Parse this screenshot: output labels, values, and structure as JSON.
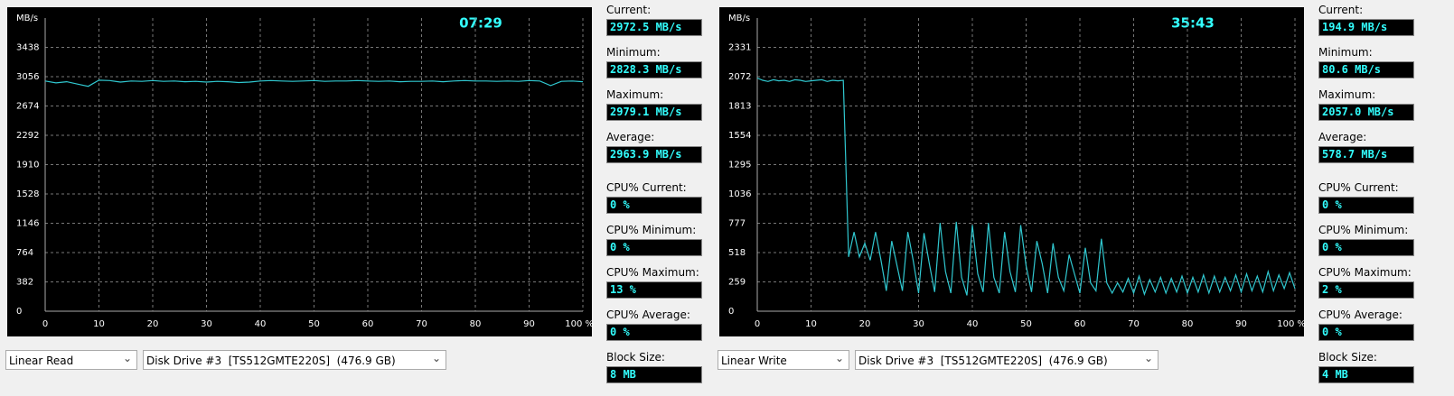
{
  "chart_data": [
    {
      "type": "line",
      "y_label": "MB/s",
      "annotation": "07:29",
      "xlim": [
        0,
        100
      ],
      "xticks": [
        0,
        10,
        20,
        30,
        40,
        50,
        60,
        70,
        80,
        90,
        {
          "value": 100,
          "label": "100 %"
        }
      ],
      "ylim": [
        0,
        3820
      ],
      "yticks": [
        0,
        382,
        764,
        1146,
        1528,
        1910,
        2292,
        2674,
        3056,
        3438
      ],
      "grid": true,
      "x": [
        0,
        2,
        4,
        6,
        8,
        10,
        12,
        14,
        16,
        18,
        20,
        22,
        24,
        26,
        28,
        30,
        32,
        34,
        36,
        38,
        40,
        42,
        44,
        46,
        48,
        50,
        52,
        54,
        56,
        58,
        60,
        62,
        64,
        66,
        68,
        70,
        72,
        74,
        76,
        78,
        80,
        82,
        84,
        86,
        88,
        90,
        92,
        94,
        96,
        98,
        100
      ],
      "series": [
        {
          "color": "#30c8d0",
          "values": [
            3000,
            2975,
            2990,
            2960,
            2930,
            3010,
            3005,
            2985,
            3000,
            2995,
            3005,
            2995,
            3000,
            2990,
            2995,
            2985,
            2995,
            2990,
            2980,
            2985,
            3000,
            3005,
            3000,
            2995,
            3000,
            3005,
            2995,
            3000,
            3000,
            3005,
            3000,
            2995,
            3000,
            2990,
            2995,
            2995,
            3000,
            2990,
            3000,
            3005,
            3000,
            3000,
            2995,
            3000,
            2995,
            3005,
            3000,
            2940,
            2995,
            3000,
            2990
          ]
        }
      ]
    },
    {
      "type": "line",
      "y_label": "MB/s",
      "annotation": "35:43",
      "xlim": [
        0,
        100
      ],
      "xticks": [
        0,
        10,
        20,
        30,
        40,
        50,
        60,
        70,
        80,
        90,
        {
          "value": 100,
          "label": "100 %"
        }
      ],
      "ylim": [
        0,
        2590
      ],
      "yticks": [
        0,
        259,
        518,
        777,
        1036,
        1295,
        1554,
        1813,
        2072,
        2331
      ],
      "grid": true,
      "x": [
        0,
        1,
        2,
        3,
        4,
        5,
        6,
        7,
        8,
        9,
        10,
        11,
        12,
        13,
        14,
        15,
        16,
        17,
        18,
        19,
        20,
        21,
        22,
        23,
        24,
        25,
        26,
        27,
        28,
        29,
        30,
        31,
        32,
        33,
        34,
        35,
        36,
        37,
        38,
        39,
        40,
        41,
        42,
        43,
        44,
        45,
        46,
        47,
        48,
        49,
        50,
        51,
        52,
        53,
        54,
        55,
        56,
        57,
        58,
        59,
        60,
        61,
        62,
        63,
        64,
        65,
        66,
        67,
        68,
        69,
        70,
        71,
        72,
        73,
        74,
        75,
        76,
        77,
        78,
        79,
        80,
        81,
        82,
        83,
        84,
        85,
        86,
        87,
        88,
        89,
        90,
        91,
        92,
        93,
        94,
        95,
        96,
        97,
        98,
        99,
        100
      ],
      "series": [
        {
          "color": "#30c8d0",
          "values": [
            2060,
            2040,
            2030,
            2045,
            2035,
            2040,
            2030,
            2045,
            2040,
            2030,
            2035,
            2040,
            2045,
            2030,
            2040,
            2035,
            2040,
            480,
            700,
            480,
            600,
            450,
            700,
            450,
            180,
            620,
            400,
            180,
            700,
            450,
            160,
            690,
            420,
            170,
            780,
            350,
            160,
            790,
            300,
            140,
            760,
            330,
            170,
            780,
            300,
            160,
            700,
            350,
            170,
            760,
            400,
            170,
            620,
            420,
            160,
            600,
            300,
            180,
            500,
            330,
            160,
            560,
            250,
            180,
            640,
            250,
            160,
            250,
            170,
            290,
            160,
            310,
            150,
            280,
            170,
            300,
            160,
            290,
            170,
            310,
            160,
            300,
            170,
            320,
            160,
            310,
            170,
            300,
            180,
            320,
            170,
            330,
            180,
            310,
            170,
            350,
            180,
            320,
            200,
            340,
            200
          ]
        }
      ]
    }
  ],
  "panels": [
    {
      "test": "Linear Read",
      "drive": "Disk Drive #3  [TS512GMTE220S]  (476.9 GB)",
      "stats": [
        {
          "label": "Current:",
          "value": "2972.5 MB/s"
        },
        {
          "label": "Minimum:",
          "value": "2828.3 MB/s"
        },
        {
          "label": "Maximum:",
          "value": "2979.1 MB/s"
        },
        {
          "label": "Average:",
          "value": "2963.9 MB/s"
        },
        {
          "label": "CPU% Current:",
          "value": "0 %"
        },
        {
          "label": "CPU% Minimum:",
          "value": "0 %"
        },
        {
          "label": "CPU% Maximum:",
          "value": "13 %"
        },
        {
          "label": "CPU% Average:",
          "value": "0 %"
        },
        {
          "label": "Block Size:",
          "value": "8 MB"
        }
      ]
    },
    {
      "test": "Linear Write",
      "drive": "Disk Drive #3  [TS512GMTE220S]  (476.9 GB)",
      "stats": [
        {
          "label": "Current:",
          "value": "194.9 MB/s"
        },
        {
          "label": "Minimum:",
          "value": "80.6 MB/s"
        },
        {
          "label": "Maximum:",
          "value": "2057.0 MB/s"
        },
        {
          "label": "Average:",
          "value": "578.7 MB/s"
        },
        {
          "label": "CPU% Current:",
          "value": "0 %"
        },
        {
          "label": "CPU% Minimum:",
          "value": "0 %"
        },
        {
          "label": "CPU% Maximum:",
          "value": "2 %"
        },
        {
          "label": "CPU% Average:",
          "value": "0 %"
        },
        {
          "label": "Block Size:",
          "value": "4 MB"
        }
      ]
    }
  ]
}
